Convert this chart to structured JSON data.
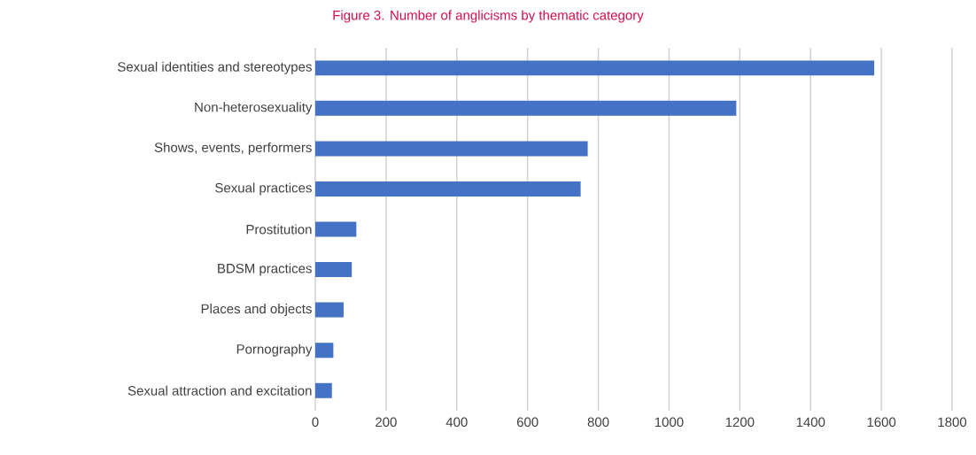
{
  "chart_data": {
    "type": "bar",
    "orientation": "horizontal",
    "title": "Figure 3.  Number of anglicisms by thematic category",
    "categories": [
      "Sexual identities and stereotypes",
      "Non-heterosexuality",
      "Shows, events, performers",
      "Sexual practices",
      "Prostitution",
      "BDSM practices",
      "Places and objects",
      "Pornography",
      "Sexual attraction and excitation"
    ],
    "values": [
      1580,
      1190,
      770,
      750,
      116,
      103,
      80,
      51,
      47
    ],
    "color": "#4472c4",
    "xlim": [
      0,
      1800
    ],
    "xticks": [
      0,
      200,
      400,
      600,
      800,
      1000,
      1200,
      1400,
      1600,
      1800
    ],
    "grid": "x"
  }
}
